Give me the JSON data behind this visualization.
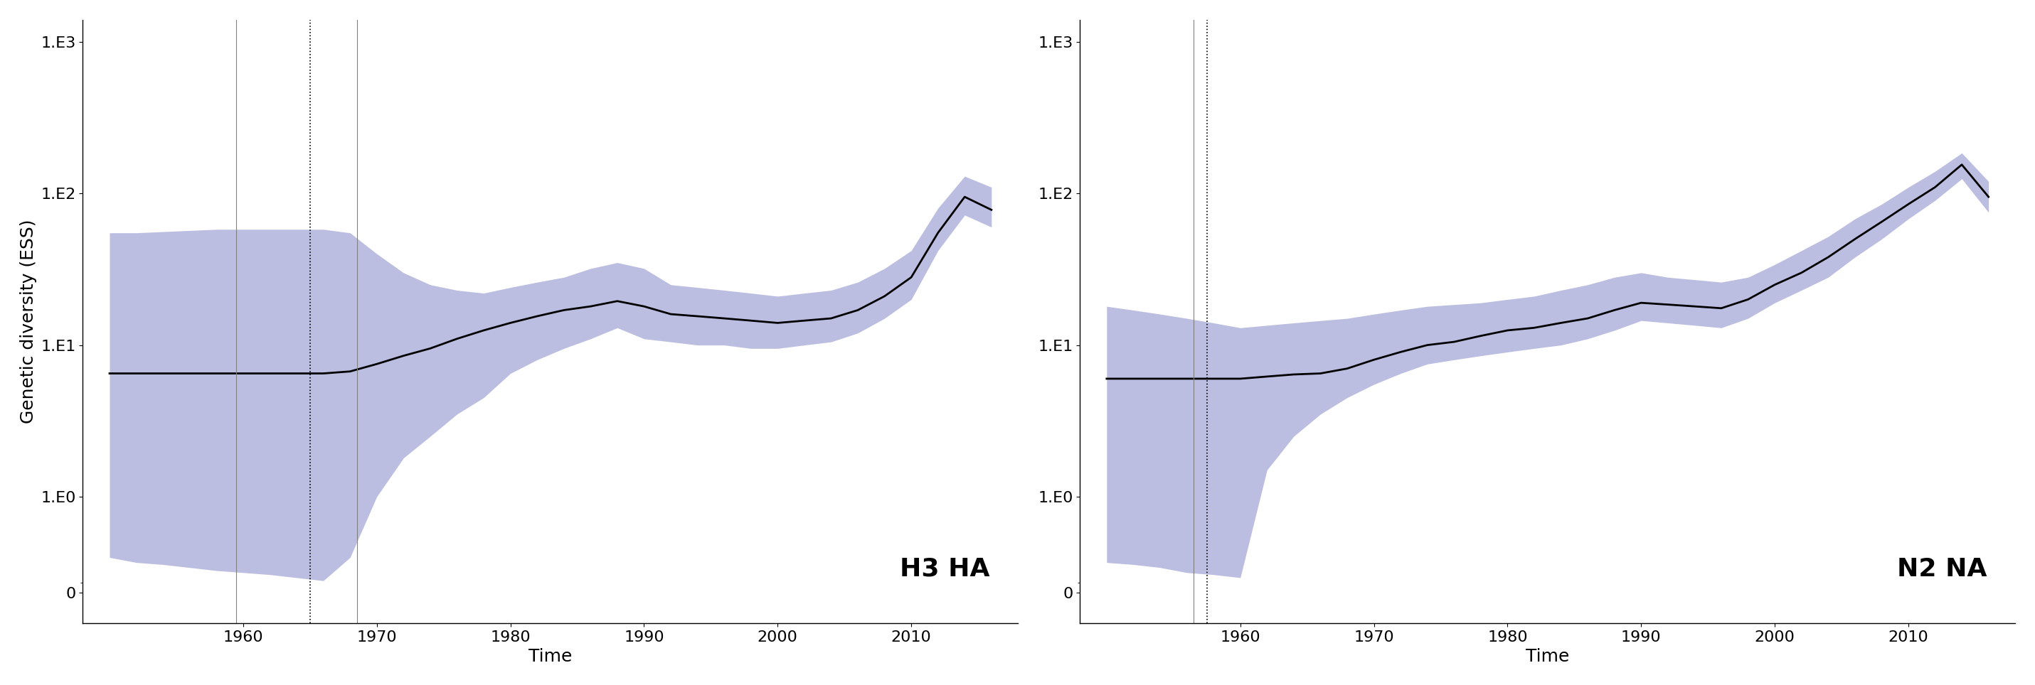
{
  "title_left": "H3 HA",
  "title_right": "N2 NA",
  "ylabel": "Genetic diversity (ESS)",
  "xlabel": "Time",
  "background_color": "#ffffff",
  "fill_color": "#7b7fc4",
  "fill_alpha": 0.5,
  "line_color": "#000000",
  "line_width": 2.0,
  "h3ha_x": [
    1950,
    1952,
    1954,
    1956,
    1958,
    1960,
    1962,
    1964,
    1966,
    1968,
    1970,
    1972,
    1974,
    1976,
    1978,
    1980,
    1982,
    1984,
    1986,
    1988,
    1990,
    1992,
    1994,
    1996,
    1998,
    2000,
    2002,
    2004,
    2006,
    2008,
    2010,
    2012,
    2014,
    2016
  ],
  "h3ha_med": [
    6.5,
    6.5,
    6.5,
    6.5,
    6.5,
    6.5,
    6.5,
    6.5,
    6.5,
    6.7,
    7.5,
    8.5,
    9.5,
    11.0,
    12.5,
    14.0,
    15.5,
    17.0,
    18.0,
    19.5,
    18.0,
    16.0,
    15.5,
    15.0,
    14.5,
    14.0,
    14.5,
    15.0,
    17.0,
    21.0,
    28.0,
    55.0,
    95.0,
    78.0
  ],
  "h3ha_lo": [
    0.35,
    0.3,
    0.28,
    0.25,
    0.22,
    0.2,
    0.18,
    0.15,
    0.12,
    0.35,
    1.0,
    1.8,
    2.5,
    3.5,
    4.5,
    6.5,
    8.0,
    9.5,
    11.0,
    13.0,
    11.0,
    10.5,
    10.0,
    10.0,
    9.5,
    9.5,
    10.0,
    10.5,
    12.0,
    15.0,
    20.0,
    42.0,
    72.0,
    60.0
  ],
  "h3ha_hi": [
    55.0,
    55.0,
    56.0,
    57.0,
    58.0,
    58.0,
    58.0,
    58.0,
    58.0,
    55.0,
    40.0,
    30.0,
    25.0,
    23.0,
    22.0,
    24.0,
    26.0,
    28.0,
    32.0,
    35.0,
    32.0,
    25.0,
    24.0,
    23.0,
    22.0,
    21.0,
    22.0,
    23.0,
    26.0,
    32.0,
    42.0,
    80.0,
    130.0,
    110.0
  ],
  "n2na_x": [
    1950,
    1952,
    1954,
    1956,
    1958,
    1960,
    1962,
    1964,
    1966,
    1968,
    1970,
    1972,
    1974,
    1976,
    1978,
    1980,
    1982,
    1984,
    1986,
    1988,
    1990,
    1992,
    1994,
    1996,
    1998,
    2000,
    2002,
    2004,
    2006,
    2008,
    2010,
    2012,
    2014,
    2016
  ],
  "n2na_med": [
    6.0,
    6.0,
    6.0,
    6.0,
    6.0,
    6.0,
    6.2,
    6.4,
    6.5,
    7.0,
    8.0,
    9.0,
    10.0,
    10.5,
    11.5,
    12.5,
    13.0,
    14.0,
    15.0,
    17.0,
    19.0,
    18.5,
    18.0,
    17.5,
    20.0,
    25.0,
    30.0,
    38.0,
    50.0,
    65.0,
    85.0,
    110.0,
    155.0,
    95.0
  ],
  "n2na_lo": [
    0.3,
    0.28,
    0.25,
    0.2,
    0.18,
    0.15,
    1.5,
    2.5,
    3.5,
    4.5,
    5.5,
    6.5,
    7.5,
    8.0,
    8.5,
    9.0,
    9.5,
    10.0,
    11.0,
    12.5,
    14.5,
    14.0,
    13.5,
    13.0,
    15.0,
    19.0,
    23.0,
    28.0,
    38.0,
    50.0,
    68.0,
    90.0,
    125.0,
    75.0
  ],
  "n2na_hi": [
    18.0,
    17.0,
    16.0,
    15.0,
    14.0,
    13.0,
    13.5,
    14.0,
    14.5,
    15.0,
    16.0,
    17.0,
    18.0,
    18.5,
    19.0,
    20.0,
    21.0,
    23.0,
    25.0,
    28.0,
    30.0,
    28.0,
    27.0,
    26.0,
    28.0,
    34.0,
    42.0,
    52.0,
    68.0,
    85.0,
    110.0,
    140.0,
    185.0,
    120.0
  ],
  "h3ha_vlines_solid": [
    1959.5,
    1968.5
  ],
  "h3ha_vlines_dotted": [
    1965.0
  ],
  "n2na_vlines_solid": [
    1956.5
  ],
  "n2na_vlines_dotted": [
    1957.5
  ],
  "xticks": [
    1960,
    1970,
    1980,
    1990,
    2000,
    2010
  ],
  "ytick_labels": [
    "0",
    "1.E0",
    "1.E1",
    "1.E2",
    "1.E3"
  ],
  "ytick_vals": [
    0,
    1,
    10,
    100,
    1000
  ],
  "ymin": 0.0,
  "ymax": 1300,
  "xmin": 1948,
  "xmax": 2018
}
